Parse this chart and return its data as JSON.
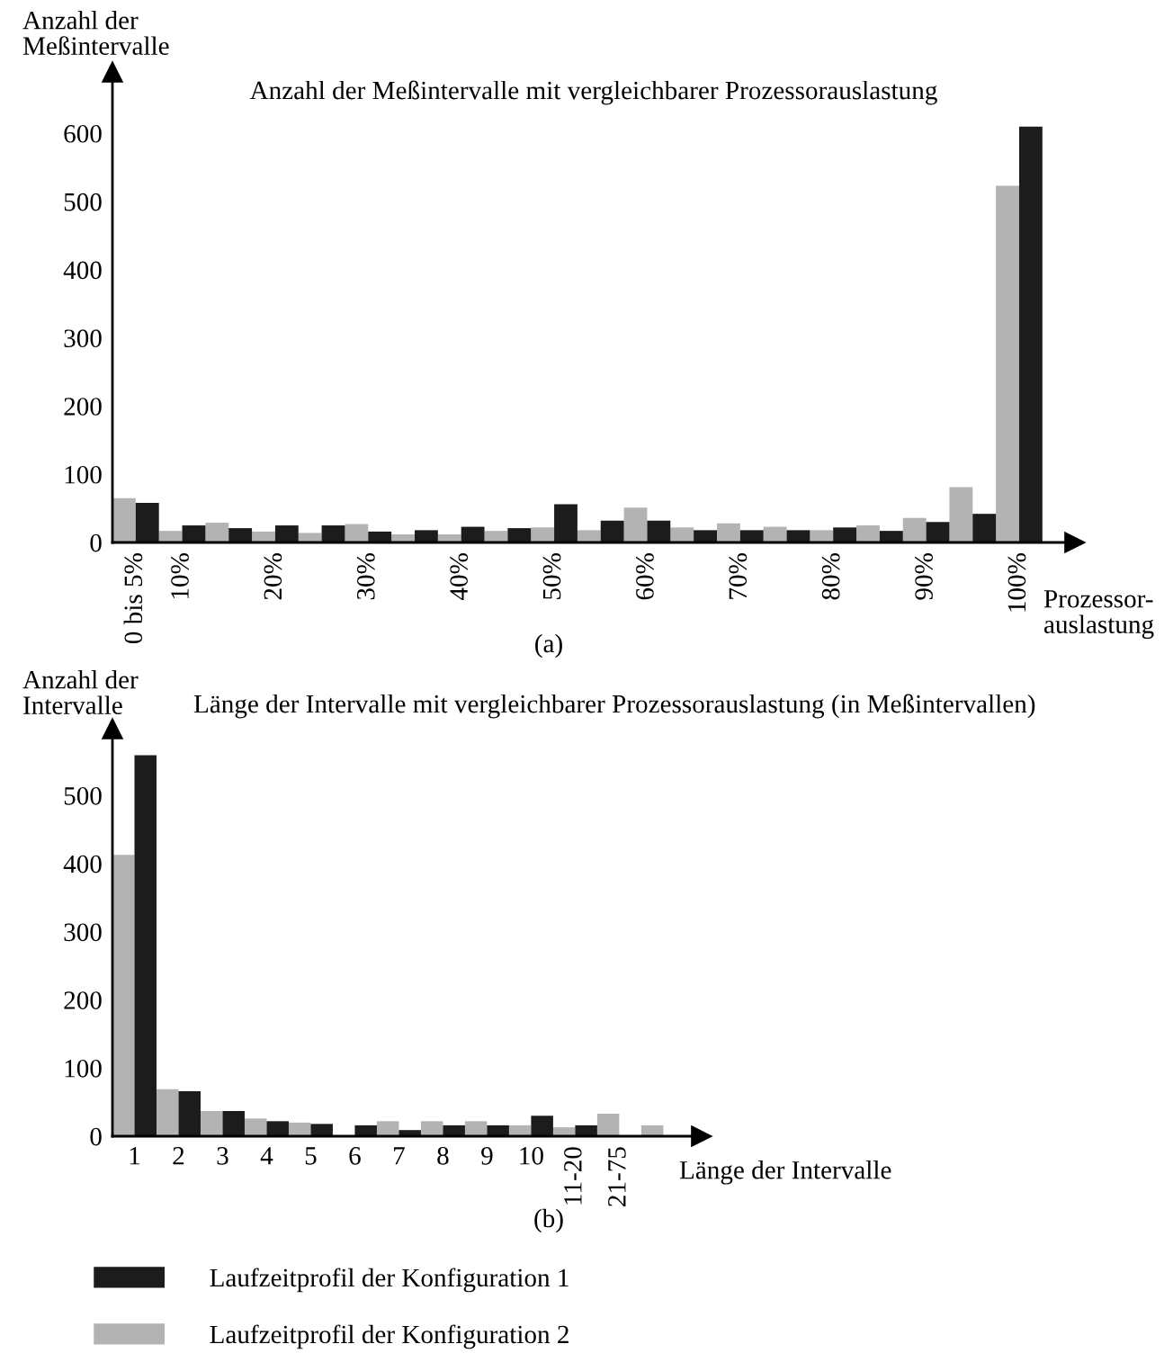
{
  "chart_data": [
    {
      "type": "bar",
      "title": "Anzahl der Meßintervalle mit vergleichbarer Prozessorauslastung",
      "ylabel": "Anzahl der\nMeßintervalle",
      "xlabel": "Prozessor-\nauslastung",
      "categories": [
        "0 bis 5%",
        "10%",
        null,
        "20%",
        null,
        "30%",
        null,
        "40%",
        null,
        "50%",
        null,
        "60%",
        null,
        "70%",
        null,
        "80%",
        null,
        "90%",
        null,
        "100%"
      ],
      "series": [
        {
          "color": "#b3b3b3",
          "values": [
            65,
            17,
            29,
            16,
            14,
            27,
            12,
            12,
            17,
            22,
            18,
            51,
            22,
            28,
            23,
            18,
            25,
            36,
            81,
            523
          ]
        },
        {
          "color": "#1c1c1c",
          "values": [
            58,
            25,
            21,
            25,
            25,
            16,
            18,
            23,
            21,
            56,
            32,
            32,
            18,
            18,
            18,
            22,
            17,
            30,
            42,
            610
          ]
        }
      ],
      "ylim": [
        0,
        690
      ],
      "yticks": [
        0,
        100,
        200,
        300,
        400,
        500,
        600
      ],
      "grid": false,
      "annotations": [
        "(a)"
      ]
    },
    {
      "type": "bar",
      "title": "Länge der Intervalle mit vergleichbarer Prozessorauslastung (in Meßintervallen)",
      "ylabel": "Anzahl der\nIntervalle",
      "xlabel": "Länge der Intervalle",
      "categories": [
        "1",
        "2",
        "3",
        "4",
        "5",
        "6",
        "7",
        "8",
        "9",
        "10",
        "11-20",
        "21-75",
        null
      ],
      "series": [
        {
          "name": "Laufzeitprofil der Konfiguration 2",
          "color": "#b3b3b3",
          "values": [
            413,
            69,
            37,
            26,
            20,
            0,
            22,
            22,
            22,
            16,
            13,
            33,
            16
          ]
        },
        {
          "name": "Laufzeitprofil der Konfiguration 1",
          "color": "#1c1c1c",
          "values": [
            559,
            66,
            37,
            22,
            18,
            16,
            9,
            16,
            16,
            30,
            16,
            0,
            0
          ]
        }
      ],
      "ylim": [
        0,
        598
      ],
      "yticks": [
        0,
        100,
        200,
        300,
        400,
        500
      ],
      "grid": false,
      "legend": "bottom",
      "annotations": [
        "(b)"
      ]
    }
  ]
}
